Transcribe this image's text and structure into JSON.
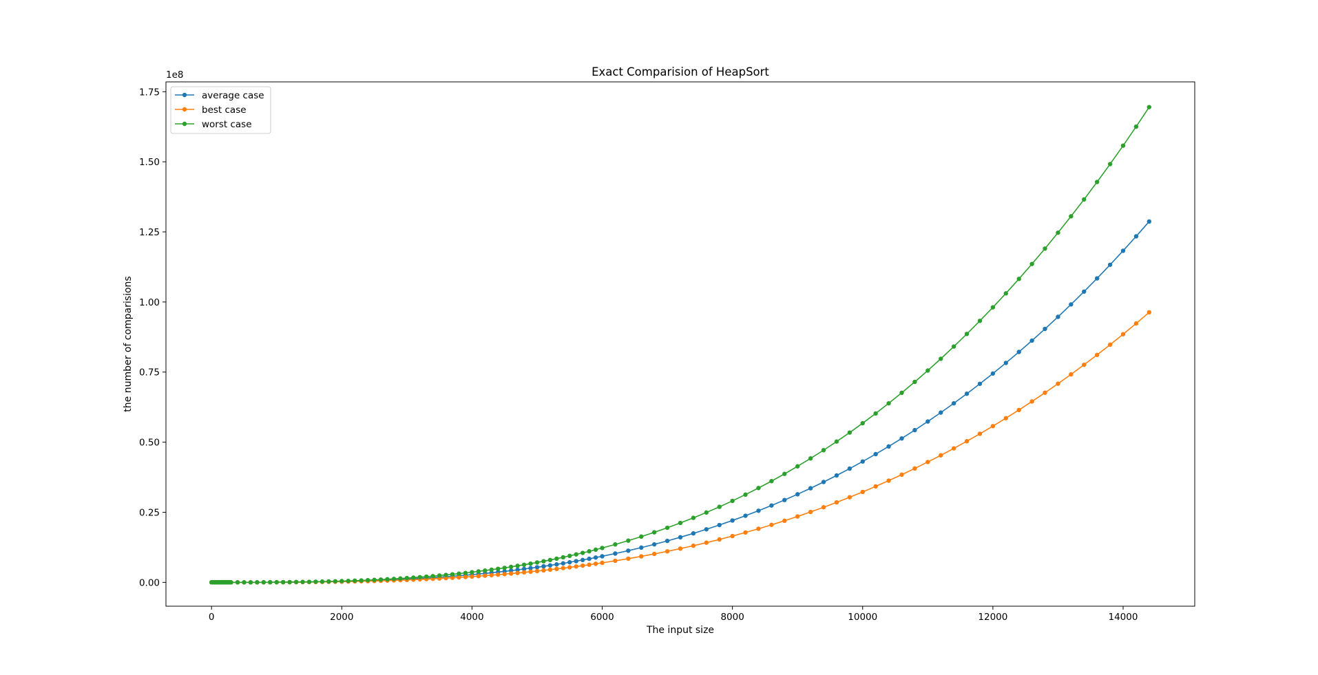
{
  "chart_data": {
    "type": "line",
    "title": "Exact Comparision of HeapSort",
    "xlabel": "The input size",
    "ylabel": "the number of comparisions",
    "y_offset_label": "1e8",
    "y_scale": 100000000,
    "xlim": [
      -700,
      15100
    ],
    "ylim": [
      -8500000,
      178500000
    ],
    "xticks": [
      0,
      2000,
      4000,
      6000,
      8000,
      10000,
      12000,
      14000
    ],
    "xtick_labels": [
      "0",
      "2000",
      "4000",
      "6000",
      "8000",
      "10000",
      "12000",
      "14000"
    ],
    "yticks": [
      0,
      25000000,
      50000000,
      75000000,
      100000000,
      125000000,
      150000000,
      175000000
    ],
    "ytick_labels": [
      "0.00",
      "0.25",
      "0.50",
      "0.75",
      "1.00",
      "1.25",
      "1.50",
      "1.75"
    ],
    "grid": false,
    "legend_position": "upper-left",
    "marker": "circle",
    "x_spec": {
      "dense_start": 0,
      "dense_step": 10,
      "dense_end": 300,
      "mid_start": 300,
      "mid_step": 100,
      "mid_end": 6000,
      "sparse_start": 6000,
      "sparse_step": 200,
      "sparse_end": 14400
    },
    "series": [
      {
        "name": "average case",
        "color": "#1f77b4",
        "coef": 128700000,
        "x_max": 14400,
        "exponent": 3
      },
      {
        "name": "best case",
        "color": "#ff7f0e",
        "coef": 96300000,
        "x_max": 14400,
        "exponent": 3
      },
      {
        "name": "worst case",
        "color": "#2ca02c",
        "coef": 169500000,
        "x_max": 14400,
        "exponent": 3
      }
    ]
  }
}
